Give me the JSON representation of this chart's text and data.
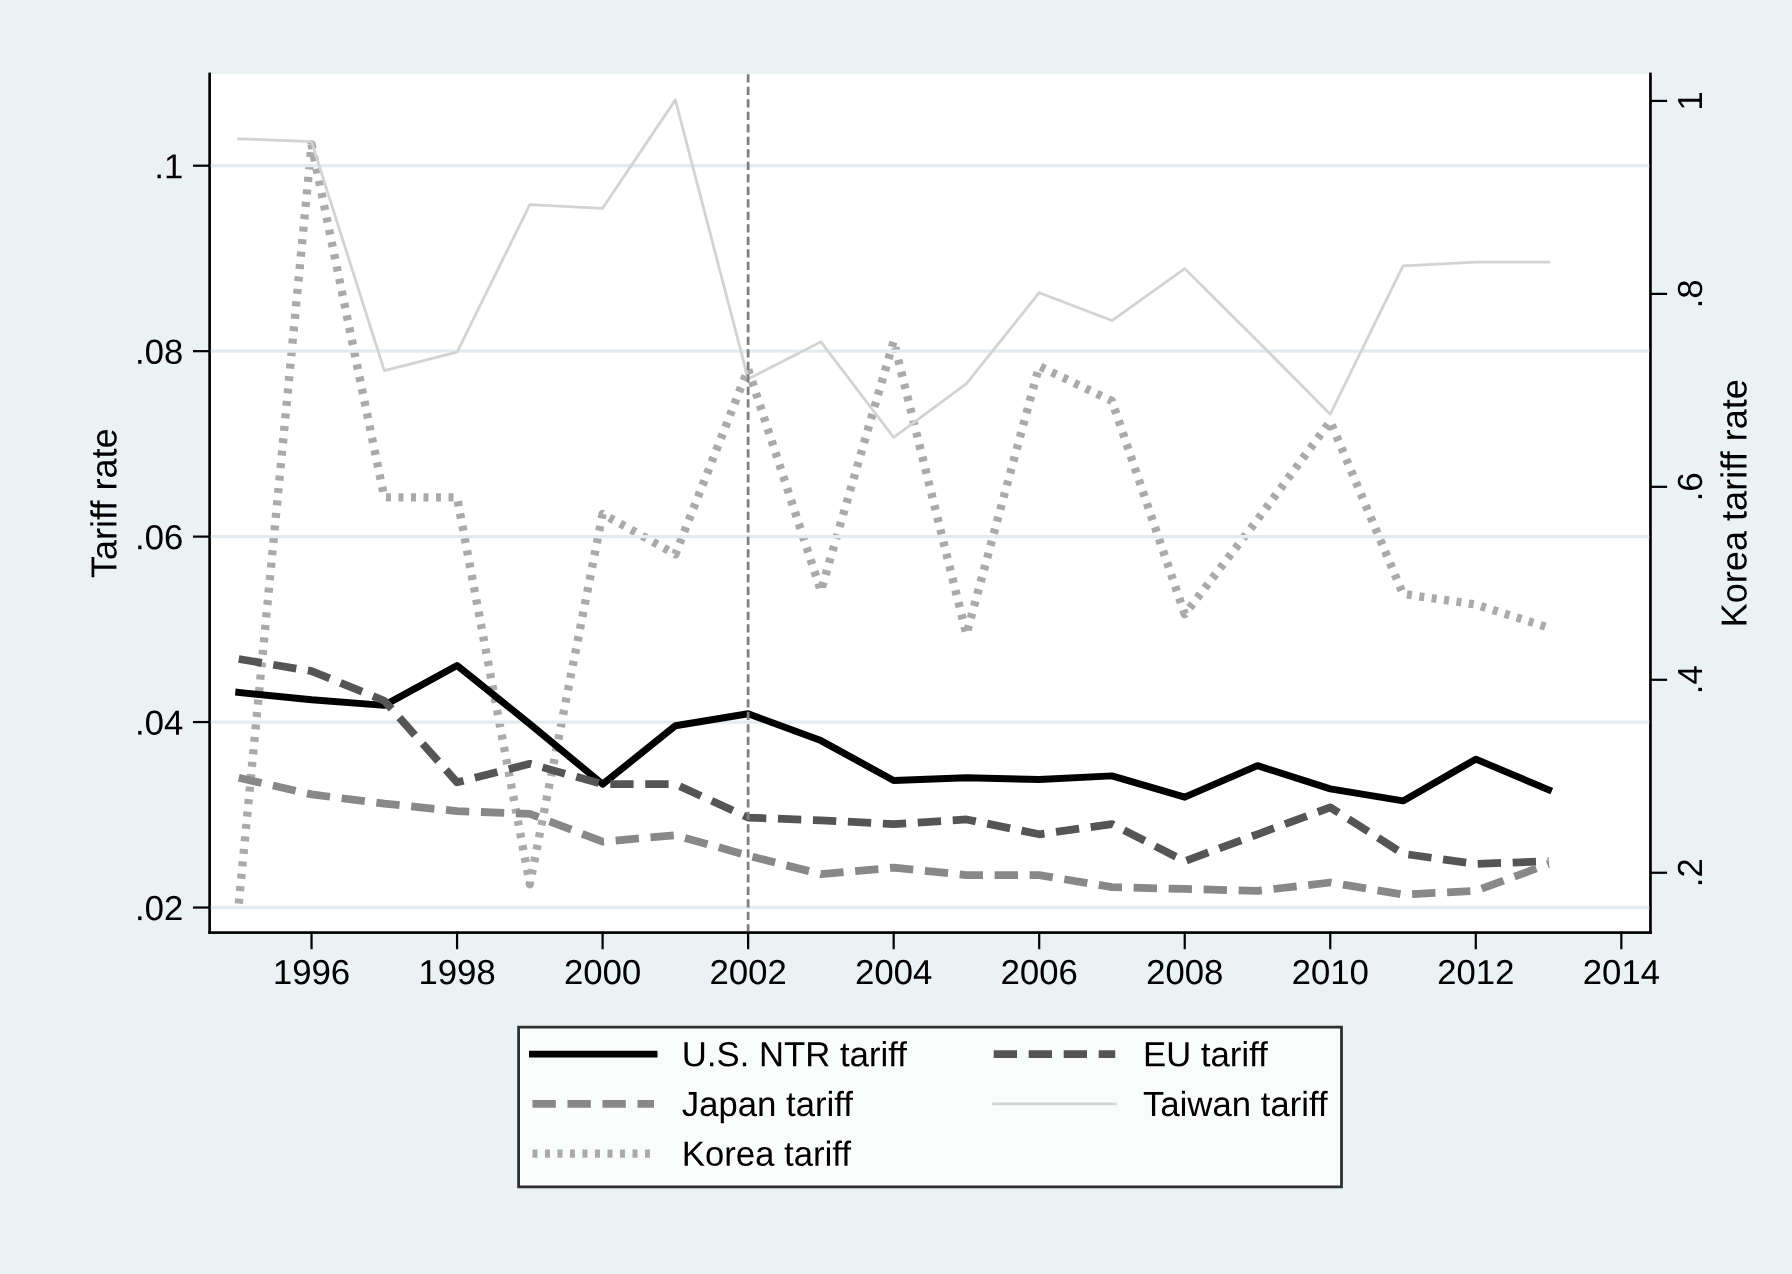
{
  "chart_data": {
    "type": "line",
    "x": [
      1995,
      1996,
      1997,
      1998,
      1999,
      2000,
      2001,
      2002,
      2003,
      2004,
      2005,
      2006,
      2007,
      2008,
      2009,
      2010,
      2011,
      2012,
      2013
    ],
    "ylabel": "Tariff rate",
    "y2label": "Korea tariff rate",
    "xlim": [
      1994.6,
      2014.4
    ],
    "xticks": [
      1996,
      1998,
      2000,
      2002,
      2004,
      2006,
      2008,
      2010,
      2012,
      2014
    ],
    "ylim": [
      0.0173,
      0.1099
    ],
    "yticks": [
      {
        "value": 0.02,
        "label": ".02"
      },
      {
        "value": 0.04,
        "label": ".04"
      },
      {
        "value": 0.06,
        "label": ".06"
      },
      {
        "value": 0.08,
        "label": ".08"
      },
      {
        "value": 0.1,
        "label": ".1"
      }
    ],
    "y2lim": [
      0.138,
      1.028
    ],
    "y2ticks": [
      {
        "value": 0.2,
        "label": ".2"
      },
      {
        "value": 0.4,
        "label": ".4"
      },
      {
        "value": 0.6,
        "label": ".6"
      },
      {
        "value": 0.8,
        "label": ".8"
      },
      1
    ],
    "grid": "y",
    "legend": "bottom",
    "ref_lines": [
      {
        "axis": "x",
        "value": 2002,
        "color": "#808080",
        "line_style": "dashed"
      }
    ],
    "series": [
      {
        "name": "U.S. NTR tariff",
        "color": "#000000",
        "line_style": "solid",
        "values": [
          0.0432,
          0.0424,
          0.0418,
          0.0461,
          0.0398,
          0.0333,
          0.0396,
          0.0409,
          0.038,
          0.0337,
          0.034,
          0.0338,
          0.0342,
          0.0319,
          0.0353,
          0.0328,
          0.0315,
          0.036,
          0.0327
        ]
      },
      {
        "name": "EU tariff",
        "color": "#555555",
        "line_style": "dashed",
        "values": [
          0.0468,
          0.0455,
          0.0423,
          0.0335,
          0.0355,
          0.0333,
          0.0333,
          0.0297,
          0.0294,
          0.029,
          0.0295,
          0.0279,
          0.029,
          0.025,
          0.0279,
          0.0308,
          0.0258,
          0.0247,
          0.025
        ]
      },
      {
        "name": "Japan tariff",
        "color": "#888888",
        "line_style": "dashed",
        "values": [
          0.034,
          0.0322,
          0.0312,
          0.0304,
          0.0301,
          0.0271,
          0.0278,
          0.0256,
          0.0236,
          0.0243,
          0.0235,
          0.0235,
          0.0222,
          0.022,
          0.0218,
          0.0227,
          0.0214,
          0.0218,
          0.0247
        ]
      },
      {
        "name": "Taiwan tariff",
        "color": "#d3d3d3",
        "line_style": "solid",
        "values": [
          0.1029,
          0.1026,
          0.0779,
          0.0799,
          0.0958,
          0.0954,
          0.1071,
          0.077,
          0.081,
          0.0707,
          0.0765,
          0.0863,
          0.0833,
          0.0889,
          0.0811,
          0.0732,
          0.0892,
          0.0896,
          0.0896
        ]
      },
      {
        "name": "Korea tariff",
        "color": "#aaaaaa",
        "line_style": "dotted",
        "axis": "y2",
        "values": [
          0.168,
          0.955,
          0.589,
          0.589,
          0.188,
          0.572,
          0.53,
          0.722,
          0.492,
          0.751,
          0.447,
          0.725,
          0.689,
          0.468,
          0.566,
          0.668,
          0.489,
          0.478,
          0.454
        ]
      }
    ]
  }
}
